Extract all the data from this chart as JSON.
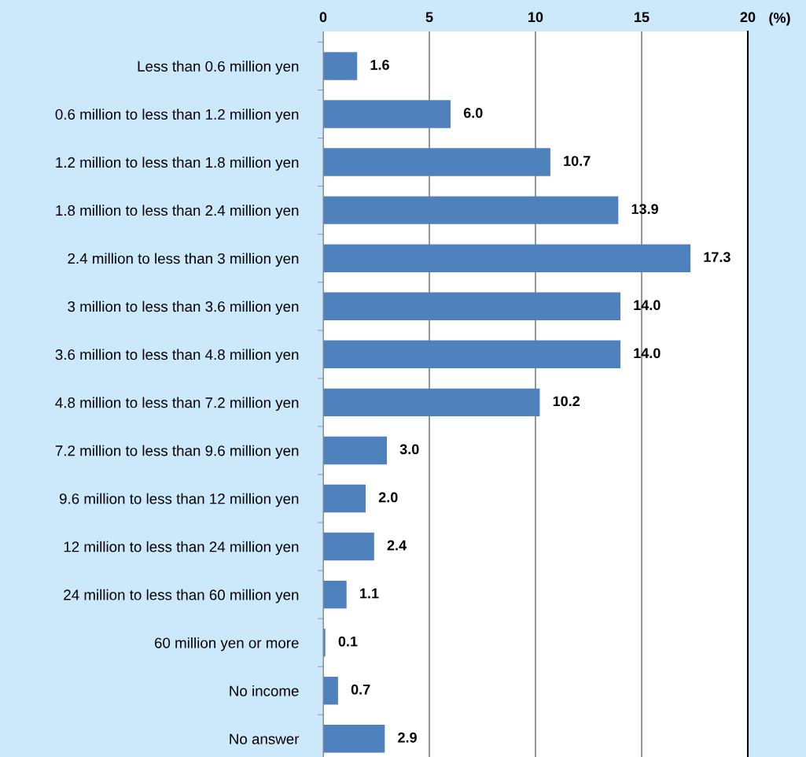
{
  "chart_data": {
    "type": "bar",
    "orientation": "horizontal",
    "xlabel": "(%)",
    "categories": [
      "Less than 0.6 million yen",
      "0.6 million to less than 1.2 million yen",
      "1.2 million to less than 1.8 million yen",
      "1.8 million to less than 2.4 million yen",
      "2.4 million to less than 3 million yen",
      "3 million to less than 3.6 million yen",
      "3.6 million to less than 4.8 million yen",
      "4.8 million to less than 7.2 million yen",
      "7.2 million to less than 9.6 million yen",
      "9.6 million to less than 12 million yen",
      "12 million to less than 24 million yen",
      "24 million to less than 60 million yen",
      "60 million yen or more",
      "No income",
      "No answer"
    ],
    "values": [
      1.6,
      6.0,
      10.7,
      13.9,
      17.3,
      14.0,
      14.0,
      10.2,
      3.0,
      2.0,
      2.4,
      1.1,
      0.1,
      0.7,
      2.9
    ],
    "value_labels": [
      "1.6",
      "6.0",
      "10.7",
      "13.9",
      "17.3",
      "14.0",
      "14.0",
      "10.2",
      "3.0",
      "2.0",
      "2.4",
      "1.1",
      "0.1",
      "0.7",
      "2.9"
    ],
    "color": "#4f81bd",
    "xlim": [
      0,
      20
    ],
    "xticks": [
      0,
      5,
      10,
      15,
      20
    ],
    "grid": "x",
    "legend": false
  }
}
